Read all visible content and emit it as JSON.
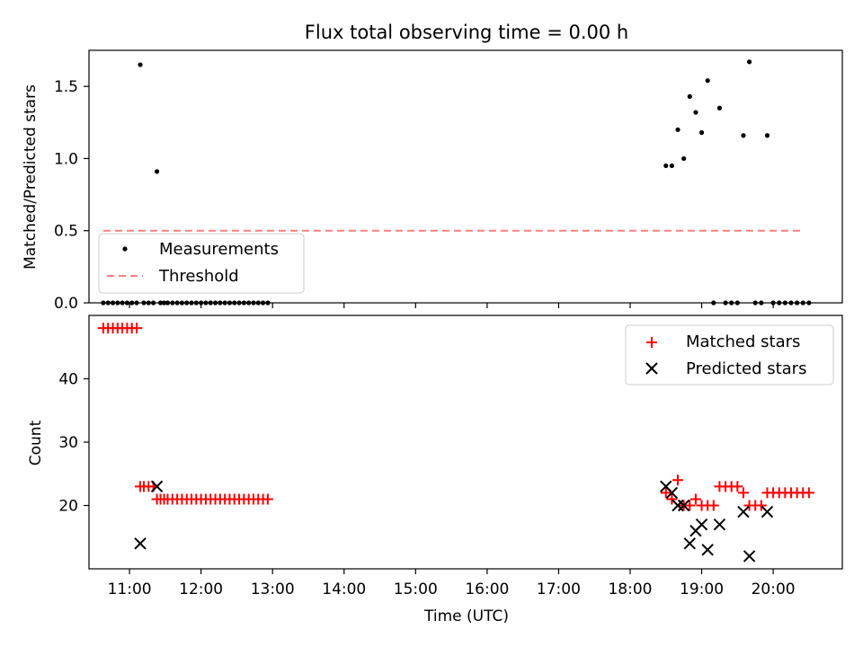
{
  "chart_data": [
    {
      "type": "scatter",
      "title": "Flux total observing time = 0.00 h",
      "xlabel": "",
      "ylabel": "Matched/Predicted stars",
      "xlim": [
        "10:26",
        "20:58"
      ],
      "ylim": [
        0,
        1.75
      ],
      "yticks": [
        0.0,
        0.5,
        1.0,
        1.5
      ],
      "ytick_labels": [
        "0.0",
        "0.5",
        "1.0",
        "1.5"
      ],
      "xtick_labels_visible": false,
      "legend_position": "lower-left",
      "series": [
        {
          "name": "Measurements",
          "marker": "dot",
          "color": "#000000",
          "x": [
            "10:38",
            "10:42",
            "10:46",
            "10:50",
            "10:54",
            "10:58",
            "11:02",
            "11:06",
            "11:09",
            "11:12",
            "11:16",
            "11:20",
            "11:23",
            "11:26",
            "11:29",
            "11:32",
            "11:36",
            "11:40",
            "11:44",
            "11:48",
            "11:52",
            "11:56",
            "12:00",
            "12:04",
            "12:08",
            "12:12",
            "12:16",
            "12:20",
            "12:24",
            "12:28",
            "12:32",
            "12:36",
            "12:40",
            "12:44",
            "12:48",
            "12:52",
            "12:56",
            "18:30",
            "18:35",
            "18:40",
            "18:45",
            "18:50",
            "18:55",
            "19:00",
            "19:05",
            "19:10",
            "19:15",
            "19:20",
            "19:25",
            "19:30",
            "19:35",
            "19:40",
            "19:45",
            "19:50",
            "19:55",
            "20:00",
            "20:05",
            "20:10",
            "20:15",
            "20:20",
            "20:25",
            "20:30"
          ],
          "y": [
            0,
            0,
            0,
            0,
            0,
            0,
            0,
            0,
            1.65,
            0,
            0,
            0,
            0.91,
            0,
            0,
            0,
            0,
            0,
            0,
            0,
            0,
            0,
            0,
            0,
            0,
            0,
            0,
            0,
            0,
            0,
            0,
            0,
            0,
            0,
            0,
            0,
            0,
            0.95,
            0.95,
            1.2,
            1.0,
            1.43,
            1.32,
            1.18,
            1.54,
            0,
            1.35,
            0,
            0,
            0,
            1.16,
            1.67,
            0,
            0,
            1.16,
            0,
            0,
            0,
            0,
            0,
            0,
            0
          ]
        },
        {
          "name": "Threshold",
          "line": "dashed",
          "color": "#ff7f7f",
          "x": [
            "10:38",
            "20:25"
          ],
          "y": [
            0.5,
            0.5
          ]
        }
      ]
    },
    {
      "type": "scatter",
      "title": "",
      "xlabel": "Time (UTC)",
      "ylabel": "Count",
      "xlim": [
        "10:26",
        "20:58"
      ],
      "ylim": [
        10,
        50
      ],
      "yticks": [
        20,
        30,
        40
      ],
      "ytick_labels": [
        "20",
        "30",
        "40"
      ],
      "xticks": [
        "11:00",
        "12:00",
        "13:00",
        "14:00",
        "15:00",
        "16:00",
        "17:00",
        "18:00",
        "19:00",
        "20:00"
      ],
      "xtick_labels": [
        "11:00",
        "12:00",
        "13:00",
        "14:00",
        "15:00",
        "16:00",
        "17:00",
        "18:00",
        "19:00",
        "20:00"
      ],
      "legend_position": "top-right",
      "series": [
        {
          "name": "Matched stars",
          "marker": "plus",
          "color": "#ff0000",
          "x": [
            "10:38",
            "10:42",
            "10:46",
            "10:50",
            "10:54",
            "10:58",
            "11:02",
            "11:06",
            "11:09",
            "11:12",
            "11:16",
            "11:20",
            "11:23",
            "11:26",
            "11:29",
            "11:32",
            "11:36",
            "11:40",
            "11:44",
            "11:48",
            "11:52",
            "11:56",
            "12:00",
            "12:04",
            "12:08",
            "12:12",
            "12:16",
            "12:20",
            "12:24",
            "12:28",
            "12:32",
            "12:36",
            "12:40",
            "12:44",
            "12:48",
            "12:52",
            "12:56",
            "18:30",
            "18:35",
            "18:40",
            "18:45",
            "18:50",
            "18:55",
            "19:00",
            "19:05",
            "19:10",
            "19:15",
            "19:20",
            "19:25",
            "19:30",
            "19:35",
            "19:40",
            "19:45",
            "19:50",
            "19:55",
            "20:00",
            "20:05",
            "20:10",
            "20:15",
            "20:20",
            "20:25",
            "20:30"
          ],
          "y": [
            48,
            48,
            48,
            48,
            48,
            48,
            48,
            48,
            23,
            23,
            23,
            23,
            21,
            21,
            21,
            21,
            21,
            21,
            21,
            21,
            21,
            21,
            21,
            21,
            21,
            21,
            21,
            21,
            21,
            21,
            21,
            21,
            21,
            21,
            21,
            21,
            21,
            22,
            21,
            24,
            20,
            20,
            21,
            20,
            20,
            20,
            23,
            23,
            23,
            23,
            22,
            20,
            20,
            20,
            22,
            22,
            22,
            22,
            22,
            22,
            22,
            22
          ]
        },
        {
          "name": "Predicted stars",
          "marker": "x",
          "color": "#000000",
          "x": [
            "11:09",
            "11:23",
            "18:30",
            "18:35",
            "18:40",
            "18:45",
            "18:50",
            "18:55",
            "19:00",
            "19:05",
            "19:15",
            "19:35",
            "19:40",
            "19:55"
          ],
          "y": [
            14,
            23,
            23,
            22,
            20,
            20,
            14,
            16,
            17,
            13,
            17,
            19,
            12,
            19
          ]
        }
      ]
    }
  ]
}
